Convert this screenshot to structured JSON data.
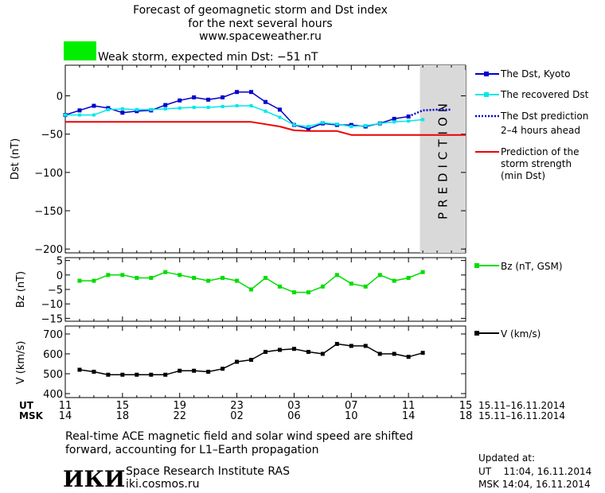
{
  "header": {
    "title_lines": [
      "Forecast of geomagnetic storm and Dst index",
      "for the next several hours",
      "www.spaceweather.ru"
    ],
    "status_text": "Weak storm, expected min Dst: −51 nT",
    "status_color": "#00ee00"
  },
  "prediction_label": "PREDICTION",
  "colors": {
    "dst_kyoto": "#0000cc",
    "dst_recovered": "#00e8e8",
    "dst_prediction": "#0000cc",
    "storm_strength": "#ee0000",
    "bz": "#00dd00",
    "v": "#000000",
    "prediction_band": "#d9d9d9"
  },
  "legend": {
    "dst_kyoto": "The Dst, Kyoto",
    "dst_recovered": "The recovered Dst",
    "dst_prediction_lines": [
      "The Dst prediction",
      "2–4 hours ahead"
    ],
    "storm_strength_lines": [
      "Prediction of the",
      "storm strength",
      "(min Dst)"
    ],
    "bz": "Bz (nT, GSM)",
    "v": "V (km/s)"
  },
  "time_axis": {
    "ut_label": "UT",
    "msk_label": "MSK",
    "ut_ticks": [
      "11",
      "15",
      "19",
      "23",
      "03",
      "07",
      "11",
      "15"
    ],
    "msk_ticks": [
      "14",
      "18",
      "22",
      "02",
      "06",
      "10",
      "14",
      "18"
    ],
    "date_range_ut": "15.11–16.11.2014",
    "date_range_msk": "15.11–16.11.2014"
  },
  "footer": {
    "note_lines": [
      "Real-time ACE magnetic field and solar wind speed are shifted",
      "forward, accounting for L1–Earth propagation"
    ],
    "logo_text": "ИКИ",
    "institute": "Space Research Institute RAS",
    "website": "iki.cosmos.ru",
    "updated_label": "Updated at:",
    "updated_ut": "UT    11:04, 16.11.2014",
    "updated_msk": "MSK 14:04, 16.11.2014"
  },
  "chart_data": [
    {
      "type": "line",
      "xlim": [
        0,
        28
      ],
      "ylabel": "Dst (nT)",
      "ylim": [
        -205,
        40
      ],
      "y_ticks": [
        0,
        -50,
        -100,
        -150,
        -200
      ],
      "prediction_start_x": 24.8,
      "series": [
        {
          "name": "The Dst, Kyoto",
          "x": [
            0,
            1,
            2,
            3,
            4,
            5,
            6,
            7,
            8,
            9,
            10,
            11,
            12,
            13,
            14,
            15,
            16,
            17,
            18,
            19,
            20,
            21,
            22,
            23,
            24
          ],
          "values": [
            -25,
            -19,
            -13,
            -16,
            -22,
            -20,
            -19,
            -12,
            -6,
            -2,
            -5,
            -2,
            5,
            5,
            -8,
            -18,
            -38,
            -43,
            -36,
            -38,
            -38,
            -40,
            -36,
            -30,
            -27
          ]
        },
        {
          "name": "The recovered Dst",
          "x": [
            0,
            1,
            2,
            3,
            4,
            5,
            6,
            7,
            8,
            9,
            10,
            11,
            12,
            13,
            14,
            15,
            16,
            17,
            18,
            19,
            20,
            21,
            22,
            23,
            24,
            25
          ],
          "values": [
            -25,
            -25,
            -25,
            -18,
            -17,
            -18,
            -18,
            -17,
            -16,
            -15,
            -15,
            -14,
            -13,
            -13,
            -20,
            -28,
            -38,
            -40,
            -35,
            -37,
            -40,
            -39,
            -36,
            -34,
            -33,
            -31
          ]
        },
        {
          "name": "The Dst prediction",
          "x": [
            24,
            25,
            26,
            27
          ],
          "values": [
            -27,
            -19,
            -18,
            -18
          ]
        },
        {
          "name": "Prediction of the storm strength",
          "x": [
            0,
            13,
            14,
            15,
            16,
            17,
            18,
            19,
            20,
            21,
            28
          ],
          "values": [
            -34,
            -34,
            -37,
            -40,
            -45,
            -46,
            -46,
            -46,
            -51,
            -51,
            -51
          ]
        }
      ]
    },
    {
      "type": "line",
      "xlim": [
        0,
        28
      ],
      "ylabel": "Bz (nT)",
      "ylim": [
        -16,
        6
      ],
      "y_ticks": [
        5,
        0,
        -5,
        -10,
        -15
      ],
      "series": [
        {
          "name": "Bz (nT, GSM)",
          "x": [
            1,
            2,
            3,
            4,
            5,
            6,
            7,
            8,
            9,
            10,
            11,
            12,
            13,
            14,
            15,
            16,
            17,
            18,
            19,
            20,
            21,
            22,
            23,
            24,
            25
          ],
          "values": [
            -2,
            -2,
            0,
            0,
            -1,
            -1,
            1,
            0,
            -1,
            -2,
            -1,
            -2,
            -5,
            -1,
            -4,
            -6,
            -6,
            -4,
            0,
            -3,
            -4,
            0,
            -2,
            -1,
            1
          ]
        }
      ]
    },
    {
      "type": "line",
      "xlim": [
        0,
        28
      ],
      "ylabel": "V (km/s)",
      "ylim": [
        380,
        740
      ],
      "y_ticks": [
        700,
        600,
        500,
        400
      ],
      "series": [
        {
          "name": "V (km/s)",
          "x": [
            1,
            2,
            3,
            4,
            5,
            6,
            7,
            8,
            9,
            10,
            11,
            12,
            13,
            14,
            15,
            16,
            17,
            18,
            19,
            20,
            21,
            22,
            23,
            24,
            25
          ],
          "values": [
            520,
            510,
            495,
            495,
            495,
            495,
            495,
            515,
            515,
            510,
            525,
            560,
            570,
            610,
            620,
            625,
            610,
            600,
            650,
            640,
            640,
            600,
            600,
            585,
            605
          ]
        }
      ]
    }
  ]
}
